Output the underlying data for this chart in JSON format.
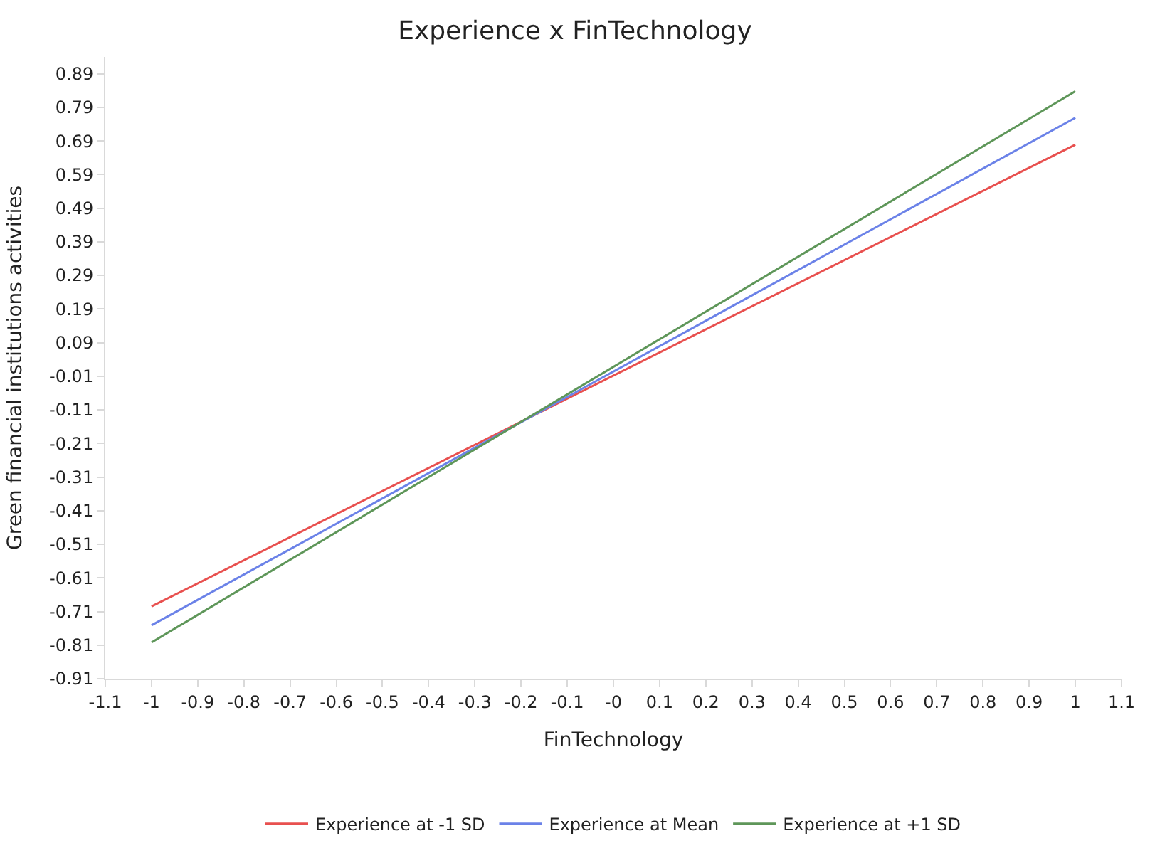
{
  "chart_data": {
    "type": "line",
    "title": "Experience x FinTechnology",
    "xlabel": "FinTechnology",
    "ylabel": "Green financial institutions activities",
    "x": [
      -1,
      1
    ],
    "series": [
      {
        "name": "Experience at -1 SD",
        "color": "#e8504f",
        "values": [
          -0.695,
          0.679
        ]
      },
      {
        "name": "Experience at Mean",
        "color": "#6b82e8",
        "values": [
          -0.751,
          0.759
        ]
      },
      {
        "name": "Experience at +1 SD",
        "color": "#5e9659",
        "values": [
          -0.802,
          0.838
        ]
      }
    ],
    "xlim": [
      -1.1,
      1.1
    ],
    "xticks": [
      -1.1,
      -1,
      -0.9,
      -0.8,
      -0.7,
      -0.6,
      -0.5,
      -0.4,
      -0.3,
      -0.2,
      -0.1,
      {
        "value": 0,
        "label": "-0"
      },
      0.1,
      0.2,
      0.3,
      0.4,
      0.5,
      0.6,
      0.7,
      0.8,
      0.9,
      1,
      1.1
    ],
    "ylim": [
      -0.91,
      0.94
    ],
    "yticks": [
      -0.91,
      -0.81,
      -0.71,
      -0.61,
      -0.51,
      -0.41,
      -0.31,
      -0.21,
      -0.11,
      -0.01,
      0.09,
      0.19,
      0.29,
      0.39,
      0.49,
      0.59,
      0.69,
      0.79,
      0.89
    ],
    "legend": "bottom",
    "marker": "none",
    "line_style": "solid"
  }
}
